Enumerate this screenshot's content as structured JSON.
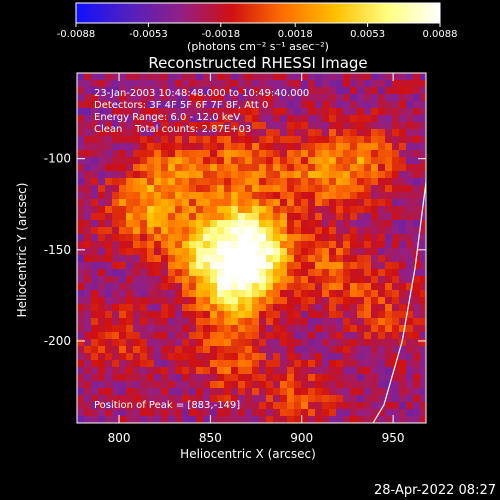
{
  "colorbar": {
    "tick_labels": [
      "-0.0088",
      "-0.0053",
      "-0.0018",
      "0.0018",
      "0.0053",
      "0.0088"
    ],
    "tick_values": [
      -0.0088,
      -0.0053,
      -0.0018,
      0.0018,
      0.0053,
      0.0088
    ],
    "range": [
      -0.0088,
      0.0088
    ],
    "units_label": "(photons cm⁻² s⁻¹ asec⁻²)",
    "colors": [
      "#1010ff",
      "#5020c0",
      "#902088",
      "#d01010",
      "#ff7000",
      "#ffc000",
      "#ffff80",
      "#ffffff"
    ]
  },
  "title": "Reconstructed RHESSI Image",
  "annotations": {
    "time_range": "23-Jan-2003 10:48:48.000 to 10:49:40.000",
    "detectors": "Detectors: 3F 4F 5F 6F 7F 8F, Att 0",
    "energy": "Energy Range: 6.0 - 12.0 keV",
    "clean": "Clean    Total counts: 2.87E+03",
    "peak": "Position of Peak = [883,-149]"
  },
  "footer_timestamp": "28-Apr-2022 08:27",
  "chart_data": {
    "type": "heatmap",
    "title": "Reconstructed RHESSI Image",
    "xlabel": "Heliocentric X (arcsec)",
    "ylabel": "Heliocentric Y (arcsec)",
    "xlim": [
      777,
      968
    ],
    "ylim": [
      -245,
      -53
    ],
    "x_ticks": [
      800,
      850,
      900,
      950
    ],
    "y_ticks": [
      -100,
      -150,
      -200
    ],
    "peak_position": [
      883,
      -149
    ],
    "sources": [
      {
        "x": 862,
        "y": -170,
        "value": 0.0082
      },
      {
        "x": 876,
        "y": -152,
        "value": 0.0085
      },
      {
        "x": 845,
        "y": -150,
        "value": 0.0062
      },
      {
        "x": 868,
        "y": -135,
        "value": 0.0048
      },
      {
        "x": 812,
        "y": -128,
        "value": 0.0052
      },
      {
        "x": 833,
        "y": -108,
        "value": 0.0045
      },
      {
        "x": 868,
        "y": -100,
        "value": 0.004
      },
      {
        "x": 905,
        "y": -110,
        "value": 0.0042
      },
      {
        "x": 933,
        "y": -100,
        "value": 0.0046
      },
      {
        "x": 918,
        "y": -160,
        "value": 0.0038
      },
      {
        "x": 860,
        "y": -210,
        "value": 0.0036
      },
      {
        "x": 900,
        "y": -230,
        "value": 0.003
      },
      {
        "x": 800,
        "y": -200,
        "value": 0.0026
      },
      {
        "x": 945,
        "y": -185,
        "value": 0.0028
      }
    ],
    "limb_curve": [
      [
        969,
        -105
      ],
      [
        962,
        -160
      ],
      [
        955,
        -200
      ],
      [
        945,
        -235
      ],
      [
        939,
        -245
      ]
    ]
  }
}
